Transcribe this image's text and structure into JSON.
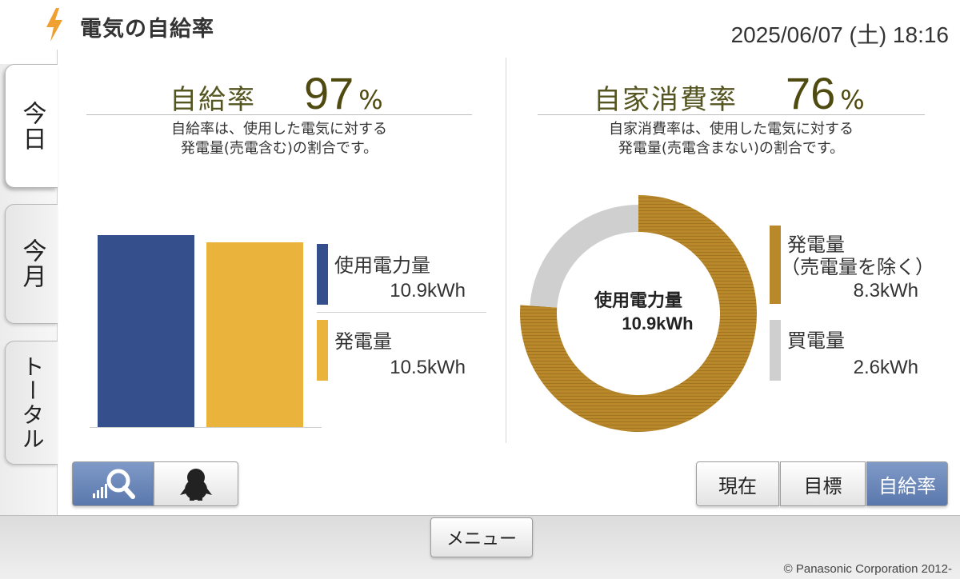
{
  "header": {
    "title": "電気の自給率",
    "datetime": "2025/06/07 (土) 18:16",
    "icon": "lightning-bolt-icon"
  },
  "tabs": [
    {
      "label": "今日",
      "active": true
    },
    {
      "label": "今月",
      "active": false
    },
    {
      "label": "トータル",
      "active": false
    }
  ],
  "self_sufficiency": {
    "label": "自給率",
    "value": "97",
    "unit": "%",
    "description_line1": "自給率は、使用した電気に対する",
    "description_line2": "発電量(売電含む)の割合です。",
    "usage_label": "使用電力量",
    "usage_value": "10.9kWh",
    "generation_label": "発電量",
    "generation_value": "10.5kWh",
    "colors": {
      "usage": "#344f8c",
      "generation": "#eab43c"
    }
  },
  "self_consumption": {
    "label": "自家消費率",
    "value": "76",
    "unit": "%",
    "description_line1": "自家消費率は、使用した電気に対する",
    "description_line2": "発電量(売電含まない)の割合です。",
    "center_label": "使用電力量",
    "center_value": "10.9kWh",
    "generation_label_line1": "発電量",
    "generation_label_line2": "（売電量を除く）",
    "generation_value": "8.3kWh",
    "purchase_label": "買電量",
    "purchase_value": "2.6kWh",
    "colors": {
      "generation": "#b8882a",
      "purchase": "#cfcfcf"
    }
  },
  "chart_data": [
    {
      "type": "bar",
      "categories": [
        "使用電力量",
        "発電量"
      ],
      "values": [
        10.9,
        10.5
      ],
      "unit": "kWh"
    },
    {
      "type": "pie",
      "categories": [
        "発電量（売電量を除く）",
        "買電量"
      ],
      "values": [
        8.3,
        2.6
      ],
      "unit": "kWh"
    }
  ],
  "toolbar_left": {
    "icons": [
      "chart-search-icon",
      "penguin-icon"
    ]
  },
  "view_buttons": [
    {
      "label": "現在",
      "selected": false
    },
    {
      "label": "目標",
      "selected": false
    },
    {
      "label": "自給率",
      "selected": true
    }
  ],
  "footer": {
    "menu_label": "メニュー",
    "copyright": "© Panasonic Corporation 2012-"
  }
}
